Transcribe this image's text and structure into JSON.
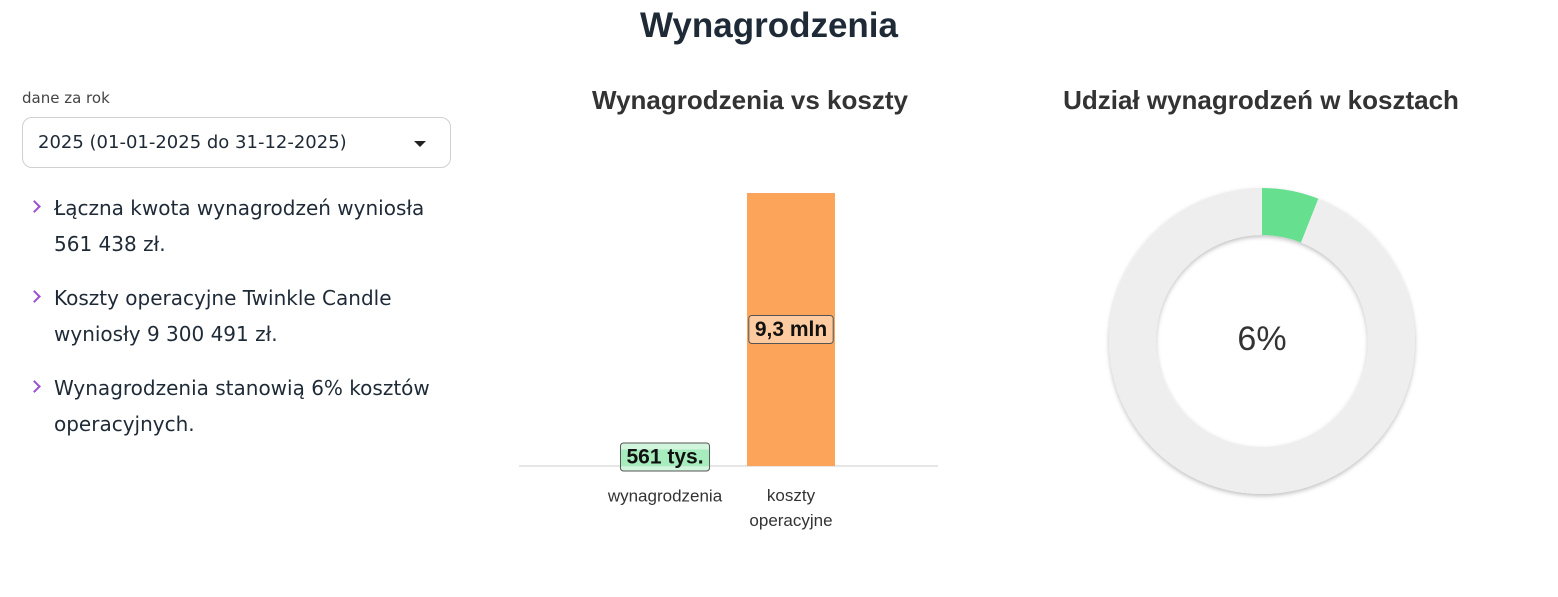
{
  "title": "Wynagrodzenia",
  "filter": {
    "label": "dane za rok",
    "value": "2025 (01-01-2025 do 31-12-2025)"
  },
  "bullets": [
    "Łączna kwota wynagrodzeń wyniosła 561 438 zł.",
    "Koszty operacyjne Twinkle Candle wyniosły 9 300 491 zł.",
    "Wynagrodzenia stanowią 6% kosztów operacyjnych."
  ],
  "chart_data": [
    {
      "type": "bar",
      "title": "Wynagrodzenia vs koszty",
      "categories": [
        "wynagrodzenia",
        "koszty operacyjne"
      ],
      "values": [
        561438,
        9300491
      ],
      "value_labels": [
        "561 tys.",
        "9,3 mln"
      ],
      "colors": [
        "#66df8f",
        "#fca55a"
      ]
    },
    {
      "type": "donut",
      "title": "Udział wynagrodzeń w kosztach",
      "values": [
        6,
        94
      ],
      "value_labels": [
        "6%",
        null
      ],
      "colors": [
        "#66df8f",
        "#eeeeee"
      ]
    }
  ]
}
